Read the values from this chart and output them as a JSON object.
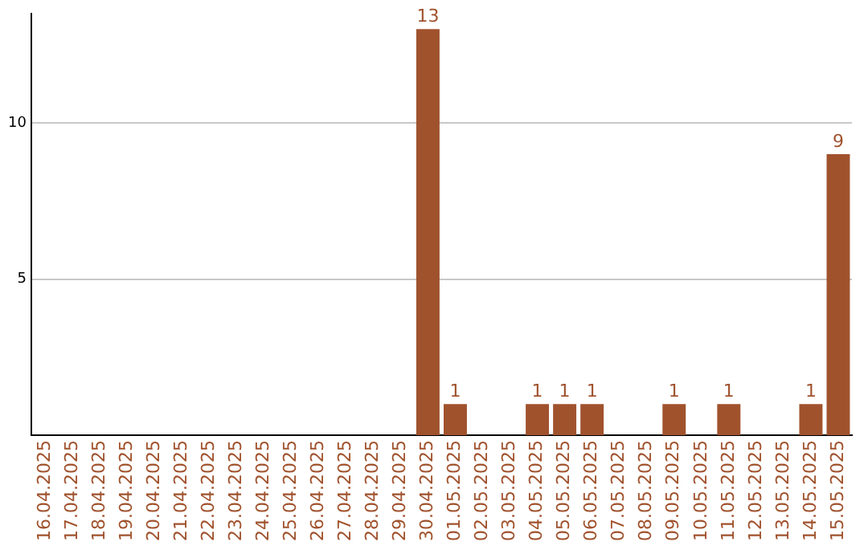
{
  "chart_data": {
    "type": "bar",
    "categories": [
      "16.04.2025",
      "17.04.2025",
      "18.04.2025",
      "19.04.2025",
      "20.04.2025",
      "21.04.2025",
      "22.04.2025",
      "23.04.2025",
      "24.04.2025",
      "25.04.2025",
      "26.04.2025",
      "27.04.2025",
      "28.04.2025",
      "29.04.2025",
      "30.04.2025",
      "01.05.2025",
      "02.05.2025",
      "03.05.2025",
      "04.05.2025",
      "05.05.2025",
      "06.05.2025",
      "07.05.2025",
      "08.05.2025",
      "09.05.2025",
      "10.05.2025",
      "11.05.2025",
      "12.05.2025",
      "13.05.2025",
      "14.05.2025",
      "15.05.2025"
    ],
    "values": [
      0,
      0,
      0,
      0,
      0,
      0,
      0,
      0,
      0,
      0,
      0,
      0,
      0,
      0,
      13,
      1,
      0,
      0,
      1,
      1,
      1,
      0,
      0,
      1,
      0,
      1,
      0,
      0,
      1,
      9
    ],
    "value_labels": [
      null,
      null,
      null,
      null,
      null,
      null,
      null,
      null,
      null,
      null,
      null,
      null,
      null,
      null,
      "13",
      "1",
      null,
      null,
      "1",
      "1",
      "1",
      null,
      null,
      "1",
      null,
      "1",
      null,
      null,
      "1",
      "9"
    ],
    "color": "#a0522d",
    "ylim": [
      0,
      13.5
    ],
    "yticks": [
      5,
      10
    ],
    "grid": "y",
    "legend": false
  }
}
